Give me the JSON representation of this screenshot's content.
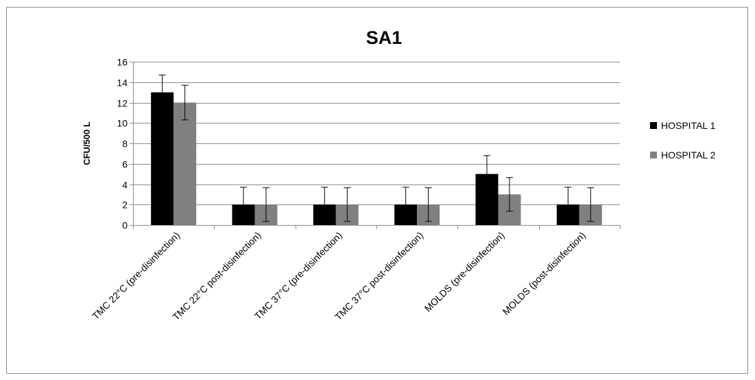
{
  "chart_data": {
    "type": "bar",
    "title": "SA1",
    "xlabel": "",
    "ylabel": "CFU/500 L",
    "ylim": [
      0,
      16
    ],
    "yticks": [
      0,
      2,
      4,
      6,
      8,
      10,
      12,
      14,
      16
    ],
    "grid": true,
    "legend_position": "right",
    "categories": [
      "TMC 22°C (pre-disinfection)",
      "TMC 22°C post-disinfection)",
      "TMC 37°C (pre-disinfection)",
      "TMC 37°C post-disinfection)",
      "MOLDS (pre-disinfection)",
      "MOLDS (post-disinfection)"
    ],
    "series": [
      {
        "name": "HOSPITAL 1",
        "color": "#000000",
        "values": [
          13,
          2,
          2,
          2,
          5,
          2
        ],
        "error": [
          1.7,
          1.7,
          1.7,
          1.7,
          1.8,
          1.7
        ]
      },
      {
        "name": "HOSPITAL 2",
        "color": "#808080",
        "values": [
          12,
          2,
          2,
          2,
          3,
          2
        ],
        "error": [
          1.7,
          1.65,
          1.65,
          1.65,
          1.65,
          1.65
        ]
      }
    ]
  }
}
